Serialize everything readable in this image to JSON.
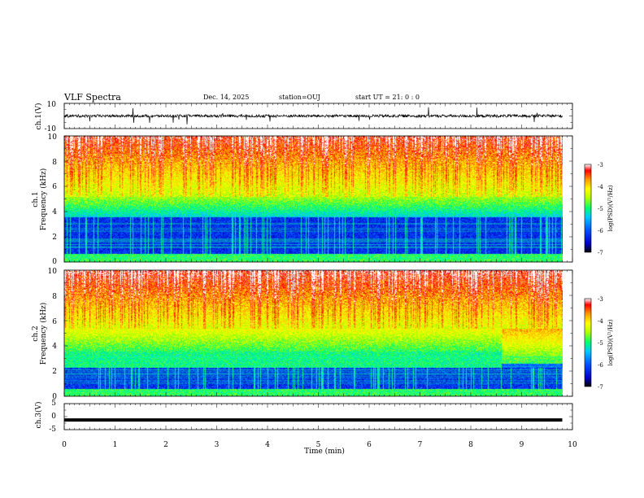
{
  "header": {
    "title": "VLF Spectra",
    "date": "Dec. 14, 2025",
    "station": "station=OUJ",
    "start": "start UT =  21: 0  : 0"
  },
  "chart_data": [
    {
      "type": "line",
      "panel": "ch1-waveform",
      "ylabel": "ch.1(V)",
      "ylim": [
        -10,
        10
      ],
      "y_ticks": [
        "10",
        "-10"
      ],
      "xlim": [
        0,
        10
      ],
      "series": [
        {
          "baseline": 0,
          "color": "#000000"
        }
      ]
    },
    {
      "type": "heatmap",
      "panel": "ch1-spectrogram",
      "ylabel_line1": "ch.1",
      "ylabel_line2": "Frequency (kHz)",
      "ylim": [
        0,
        10
      ],
      "y_ticks": [
        "0",
        "2",
        "4",
        "6",
        "8",
        "10"
      ],
      "xlim": [
        0,
        10
      ],
      "data_end_min": 9.8,
      "colorbar": {
        "range": [
          -7,
          -3
        ],
        "ticks": [
          "-3",
          "-4",
          "-5",
          "-6",
          "-7"
        ],
        "label": "log(PSD)(V²/Hz)"
      }
    },
    {
      "type": "heatmap",
      "panel": "ch2-spectrogram",
      "ylabel_line1": "ch.2",
      "ylabel_line2": "Frequency (kHz)",
      "ylim": [
        0,
        10
      ],
      "y_ticks": [
        "0",
        "2",
        "4",
        "6",
        "8",
        "10"
      ],
      "xlim": [
        0,
        10
      ],
      "data_end_min": 9.8,
      "colorbar": {
        "range": [
          -7,
          -3
        ],
        "ticks": [
          "-3",
          "-4",
          "-5",
          "-6",
          "-7"
        ],
        "label": "log(PSD)(V²/Hz)"
      }
    },
    {
      "type": "line",
      "panel": "ch3-waveform",
      "ylabel": "ch.3(V)",
      "ylim": [
        -5,
        5
      ],
      "y_ticks": [
        "5",
        "0",
        "-5"
      ],
      "xlim": [
        0,
        10
      ],
      "xlabel": "Time (min)",
      "x_ticks": [
        "0",
        "1",
        "2",
        "3",
        "4",
        "5",
        "6",
        "7",
        "8",
        "9",
        "10"
      ],
      "series": [
        {
          "value": -1.3,
          "color": "#000000"
        }
      ]
    }
  ],
  "colors": {
    "colormap": [
      "#000000",
      "#0000c8",
      "#0050ff",
      "#00c8ff",
      "#00ff70",
      "#b4ff00",
      "#ffff00",
      "#ff9600",
      "#ff0000",
      "#ffffff"
    ]
  }
}
